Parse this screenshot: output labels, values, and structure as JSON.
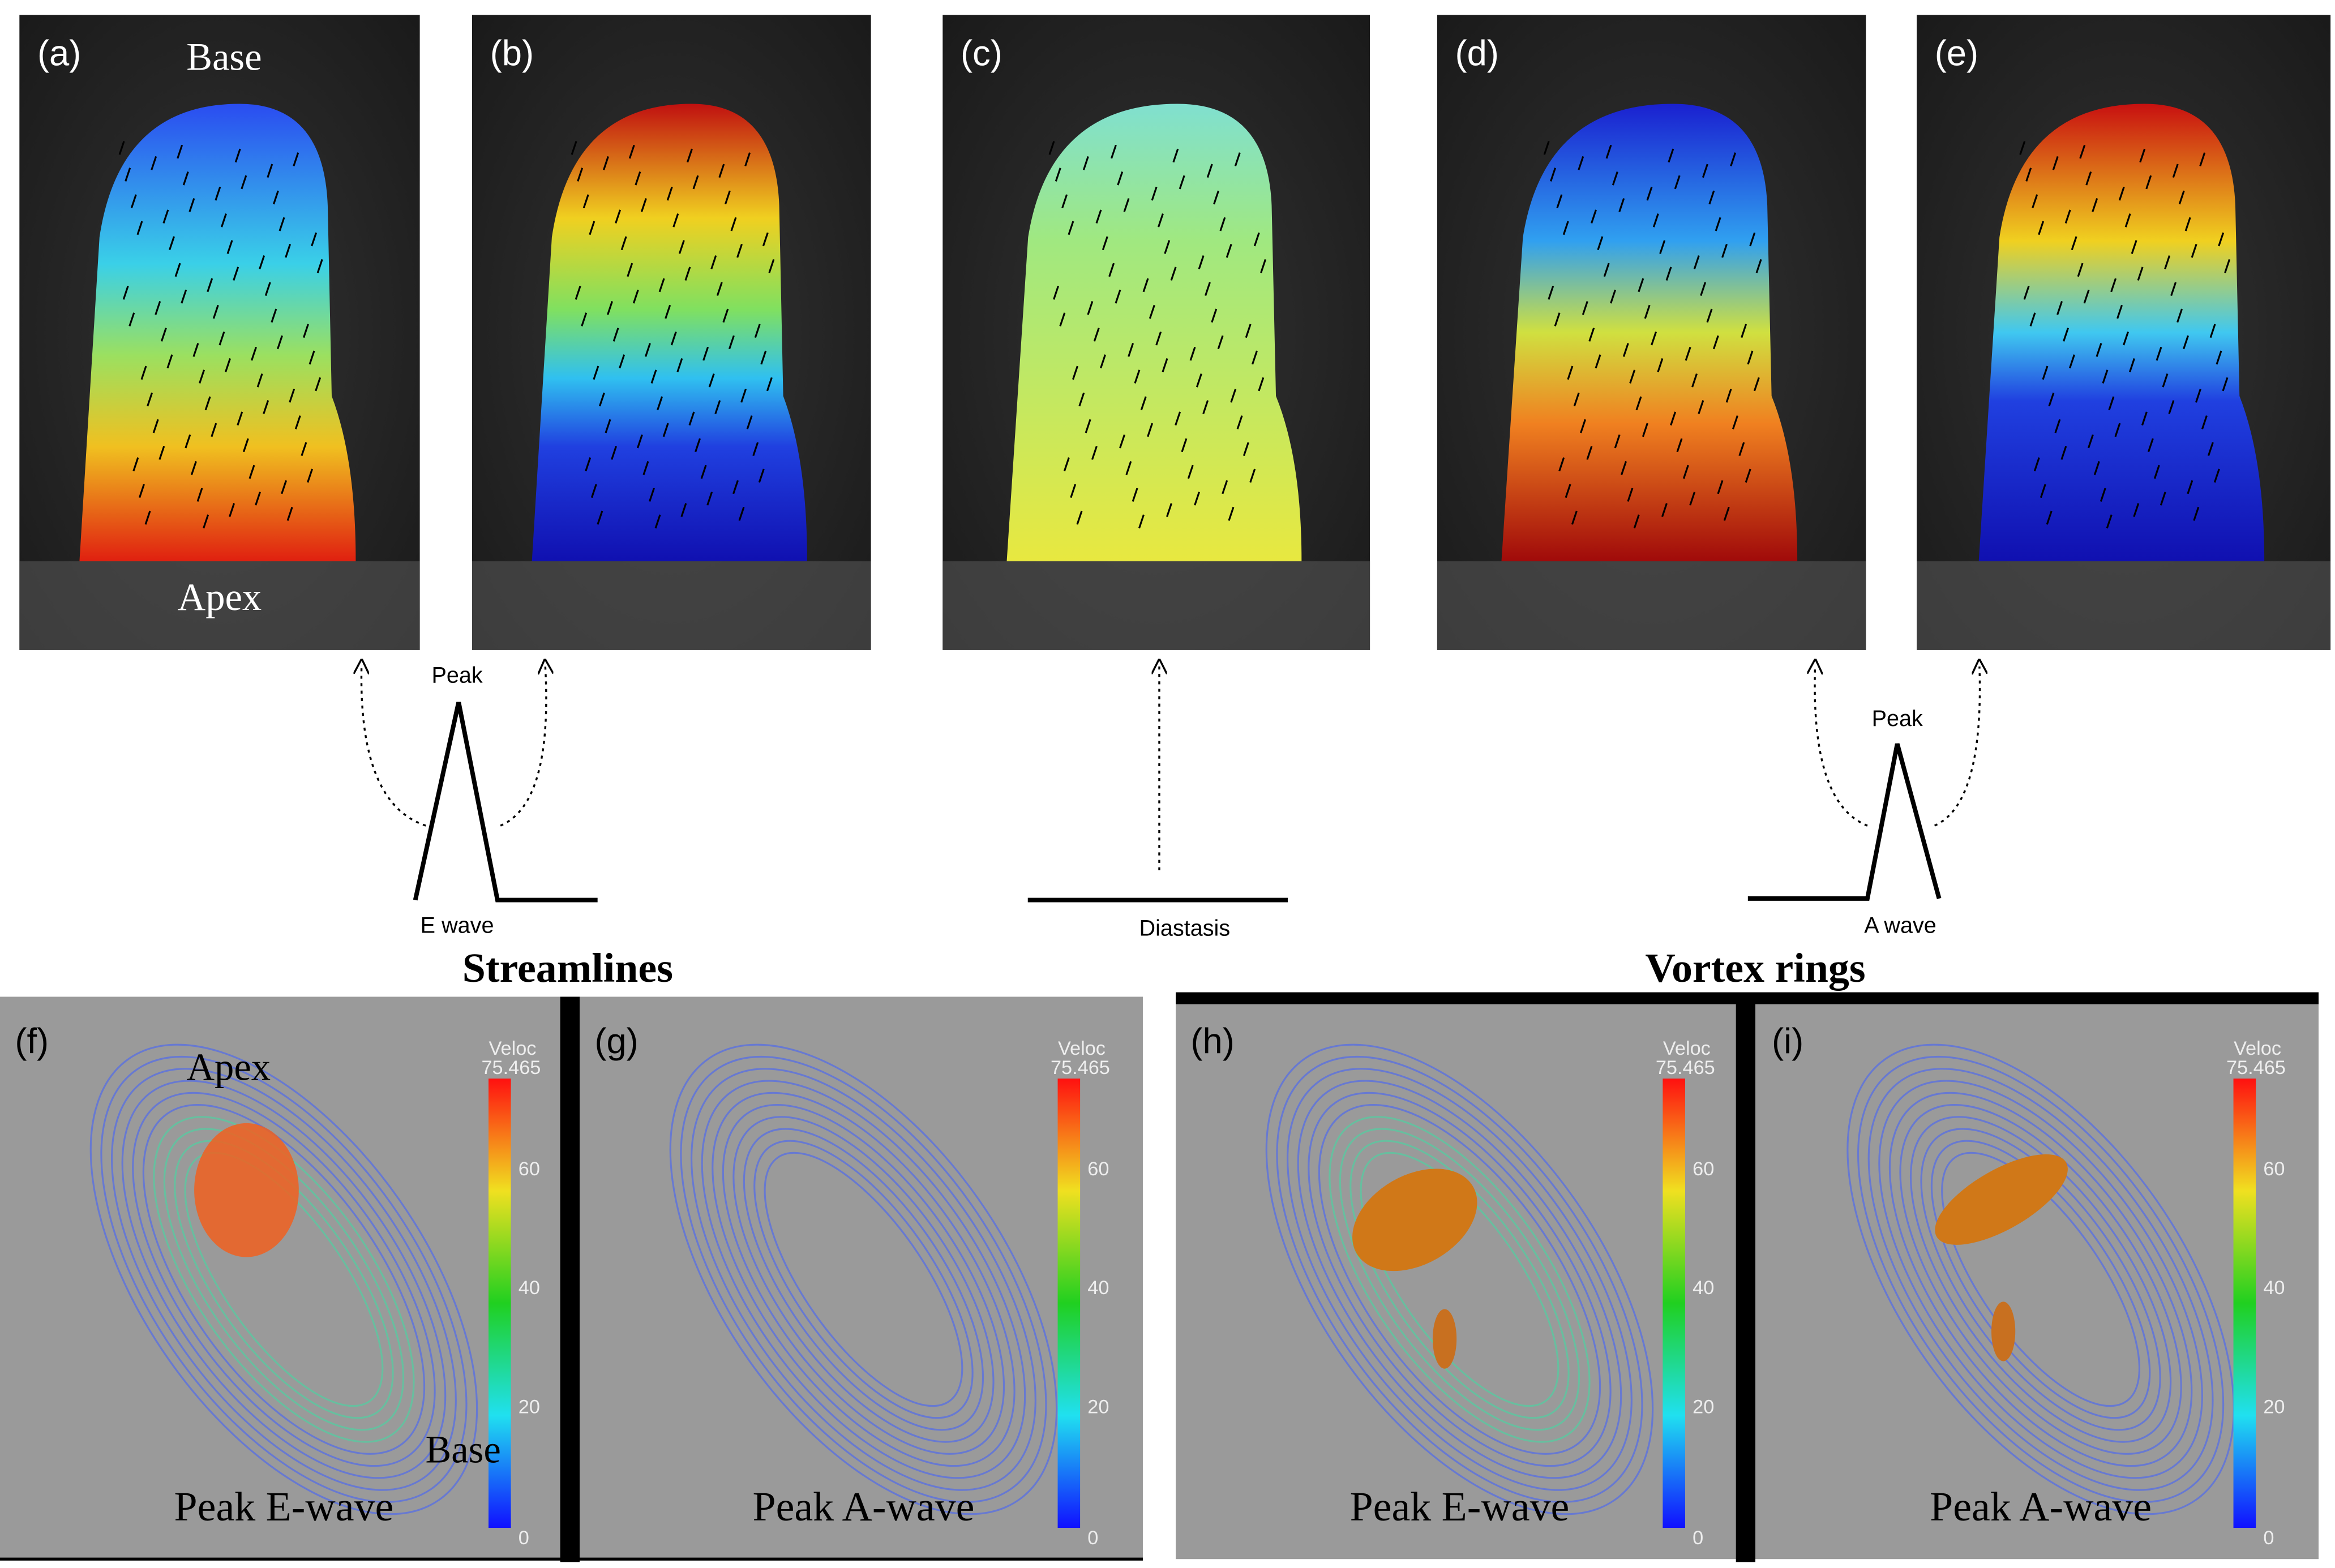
{
  "panels_top": [
    {
      "label": "(a)",
      "annotations": [
        "Base",
        "Apex"
      ]
    },
    {
      "label": "(b)"
    },
    {
      "label": "(c)"
    },
    {
      "label": "(d)"
    },
    {
      "label": "(e)"
    }
  ],
  "waves": {
    "e_wave": {
      "peak": "Peak",
      "label": "E wave"
    },
    "diastasis": {
      "label": "Diastasis"
    },
    "a_wave": {
      "peak": "Peak",
      "label": "A wave"
    }
  },
  "sections": [
    {
      "title": "Streamlines",
      "panels": [
        {
          "label": "(f)",
          "caption": "Peak E-wave",
          "annotations": [
            "Apex",
            "Base"
          ]
        },
        {
          "label": "(g)",
          "caption": "Peak A-wave"
        }
      ]
    },
    {
      "title": "Vortex rings",
      "panels": [
        {
          "label": "(h)",
          "caption": "Peak E-wave"
        },
        {
          "label": "(i)",
          "caption": "Peak A-wave"
        }
      ]
    }
  ],
  "colorbar": {
    "title": "Veloc",
    "max": "75.465",
    "ticks": [
      "60",
      "40",
      "20",
      "0"
    ]
  }
}
